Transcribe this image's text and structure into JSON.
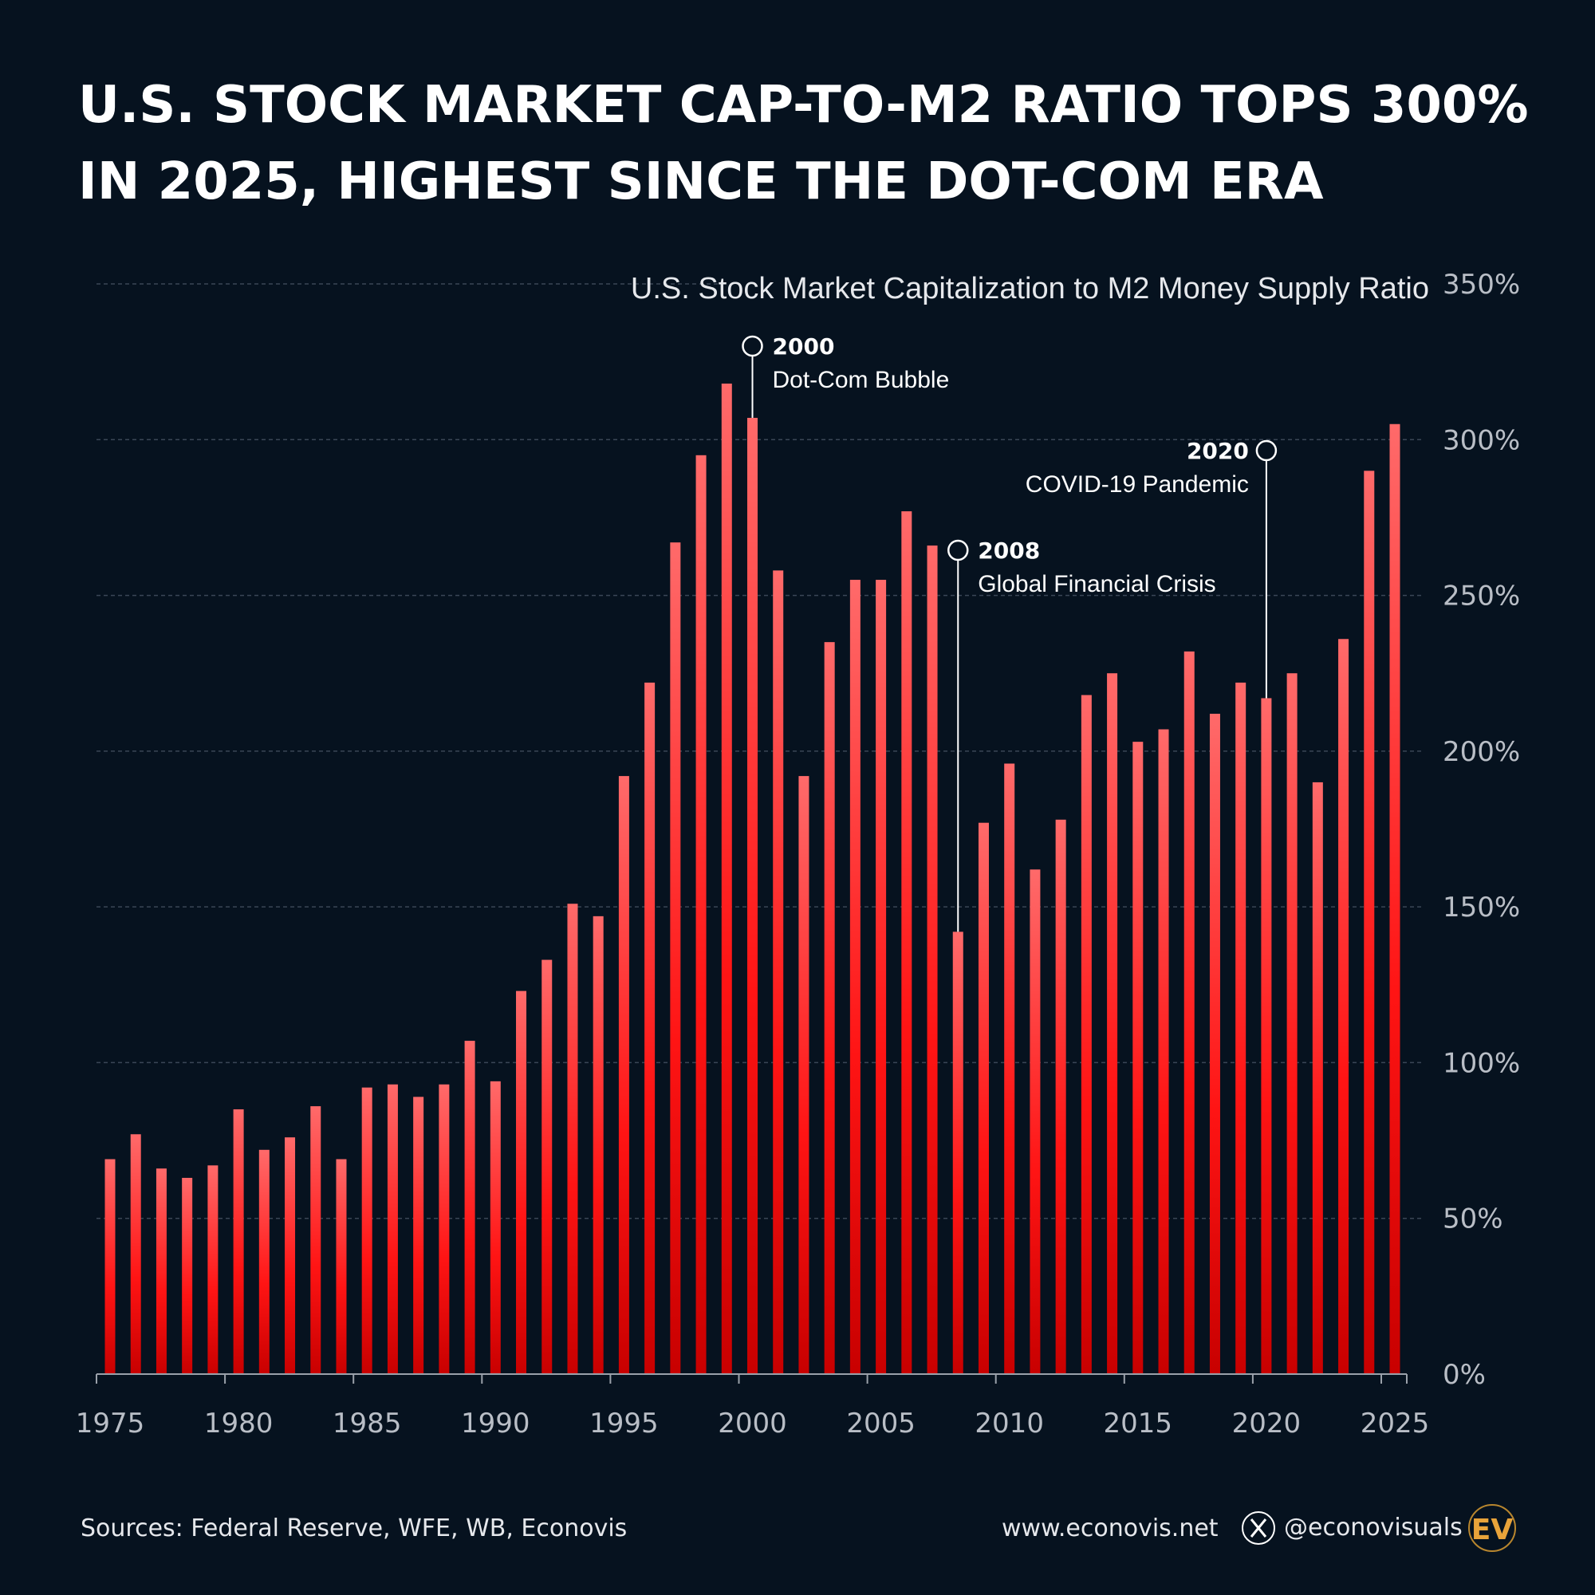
{
  "title_lines": [
    "U.S. STOCK MARKET CAP-TO-M2 RATIO TOPS 300%",
    "IN 2025, HIGHEST SINCE THE DOT-COM ERA"
  ],
  "colors": {
    "background": "#06121f",
    "bar_top": "#ff6a6a",
    "bar_mid": "#ff1414",
    "bar_bottom": "#c80000",
    "logo": "#e8a33a"
  },
  "chart_data": {
    "type": "bar",
    "title": "U.S. Stock Market Capitalization to M2 Money Supply Ratio",
    "xlabel": "",
    "ylabel": "",
    "ylim": [
      0,
      350
    ],
    "yticks": [
      0,
      50,
      100,
      150,
      200,
      250,
      300,
      350
    ],
    "ytick_labels": [
      "0%",
      "50%",
      "100%",
      "150%",
      "200%",
      "250%",
      "300%",
      "350%"
    ],
    "xtick_labels": [
      "1975",
      "1980",
      "1985",
      "1990",
      "1995",
      "2000",
      "2005",
      "2010",
      "2015",
      "2020",
      "2025"
    ],
    "grid": true,
    "categories": [
      1975,
      1976,
      1977,
      1978,
      1979,
      1980,
      1981,
      1982,
      1983,
      1984,
      1985,
      1986,
      1987,
      1988,
      1989,
      1990,
      1991,
      1992,
      1993,
      1994,
      1995,
      1996,
      1997,
      1998,
      1999,
      2000,
      2001,
      2002,
      2003,
      2004,
      2005,
      2006,
      2007,
      2008,
      2009,
      2010,
      2011,
      2012,
      2013,
      2014,
      2015,
      2016,
      2017,
      2018,
      2019,
      2020,
      2021,
      2022,
      2023,
      2024,
      2025
    ],
    "values": [
      69,
      77,
      66,
      63,
      67,
      85,
      72,
      76,
      86,
      69,
      92,
      93,
      89,
      93,
      107,
      94,
      123,
      133,
      151,
      147,
      192,
      222,
      267,
      295,
      318,
      307,
      258,
      192,
      235,
      255,
      255,
      277,
      266,
      142,
      177,
      196,
      162,
      178,
      218,
      225,
      203,
      207,
      232,
      212,
      222,
      217,
      225,
      190,
      236,
      290,
      305
    ],
    "annotations": [
      {
        "year": 2000,
        "label": "2000",
        "text": "Dot-Com Bubble"
      },
      {
        "year": 2008,
        "label": "2008",
        "text": "Global Financial Crisis"
      },
      {
        "year": 2020,
        "label": "2020",
        "text": "COVID-19 Pandemic"
      }
    ]
  },
  "footer": {
    "sources": "Sources: Federal Reserve, WFE, WB, Econovis",
    "website": "www.econovis.net",
    "handle": "@econovisuals",
    "logo_text": "EV",
    "social_icon": "x-logo-icon"
  }
}
